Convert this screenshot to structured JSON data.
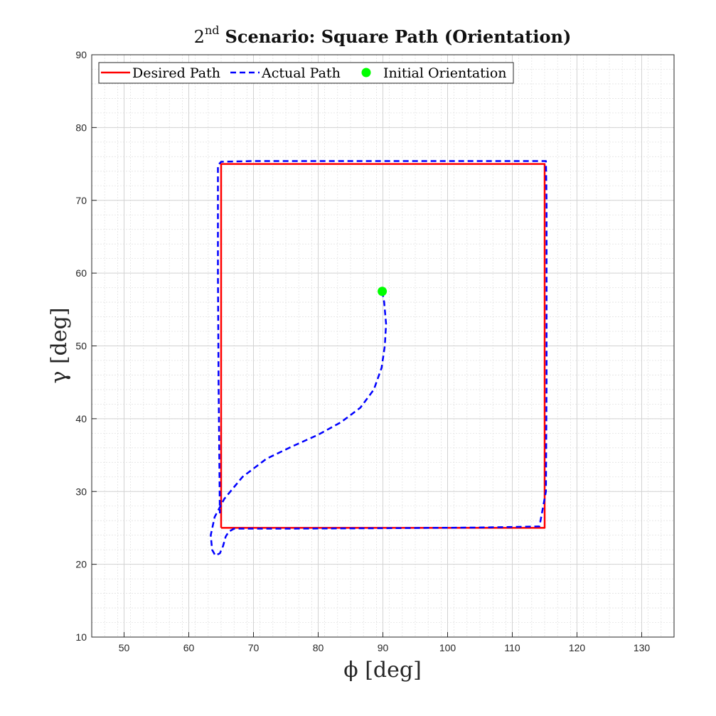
{
  "chart_data": {
    "type": "line",
    "title": {
      "prefix": "2",
      "superscript": "nd",
      "main": "Scenario: Square Path (Orientation)"
    },
    "xlabel": "ϕ [deg]",
    "ylabel": "γ [deg]",
    "xlim": [
      45,
      135
    ],
    "ylim": [
      10,
      90
    ],
    "xticks": [
      50,
      60,
      70,
      80,
      90,
      100,
      110,
      120,
      130
    ],
    "yticks": [
      10,
      20,
      30,
      40,
      50,
      60,
      70,
      80,
      90
    ],
    "grid": true,
    "minor_grid": true,
    "legend_position": "top-left",
    "series": [
      {
        "name": "Desired Path",
        "style": "solid",
        "color": "#ff0000",
        "x": [
          65,
          115,
          115,
          65,
          65
        ],
        "y": [
          25,
          25,
          75,
          75,
          25
        ]
      },
      {
        "name": "Actual Path",
        "style": "dashed",
        "color": "#0000ff",
        "x": [
          89.9,
          90.2,
          90.5,
          90.3,
          89.8,
          88.6,
          86.5,
          83.5,
          80.0,
          76.0,
          72.0,
          68.3,
          65.5,
          64.0,
          63.4,
          63.6,
          64.1,
          64.8,
          65.3,
          65.7,
          66.2,
          67.0,
          75.0,
          90.0,
          105.0,
          114.2,
          115.2,
          115.3,
          115.3,
          115.3,
          115.2,
          100.0,
          85.0,
          70.0,
          65.0,
          64.5,
          64.5,
          64.6,
          64.8
        ],
        "y": [
          57.5,
          56.0,
          53.0,
          50.0,
          47.0,
          44.0,
          41.5,
          39.5,
          37.8,
          36.2,
          34.5,
          32.0,
          29.0,
          26.5,
          24.0,
          22.0,
          21.2,
          21.5,
          22.5,
          23.8,
          24.5,
          24.9,
          24.9,
          24.95,
          25.05,
          25.2,
          30.0,
          45.0,
          60.0,
          70.0,
          75.4,
          75.4,
          75.4,
          75.4,
          75.3,
          74.8,
          60.0,
          45.0,
          27.0
        ]
      }
    ],
    "points": [
      {
        "name": "Initial Orientation",
        "color": "#00ff00",
        "x": 89.9,
        "y": 57.5
      }
    ]
  }
}
